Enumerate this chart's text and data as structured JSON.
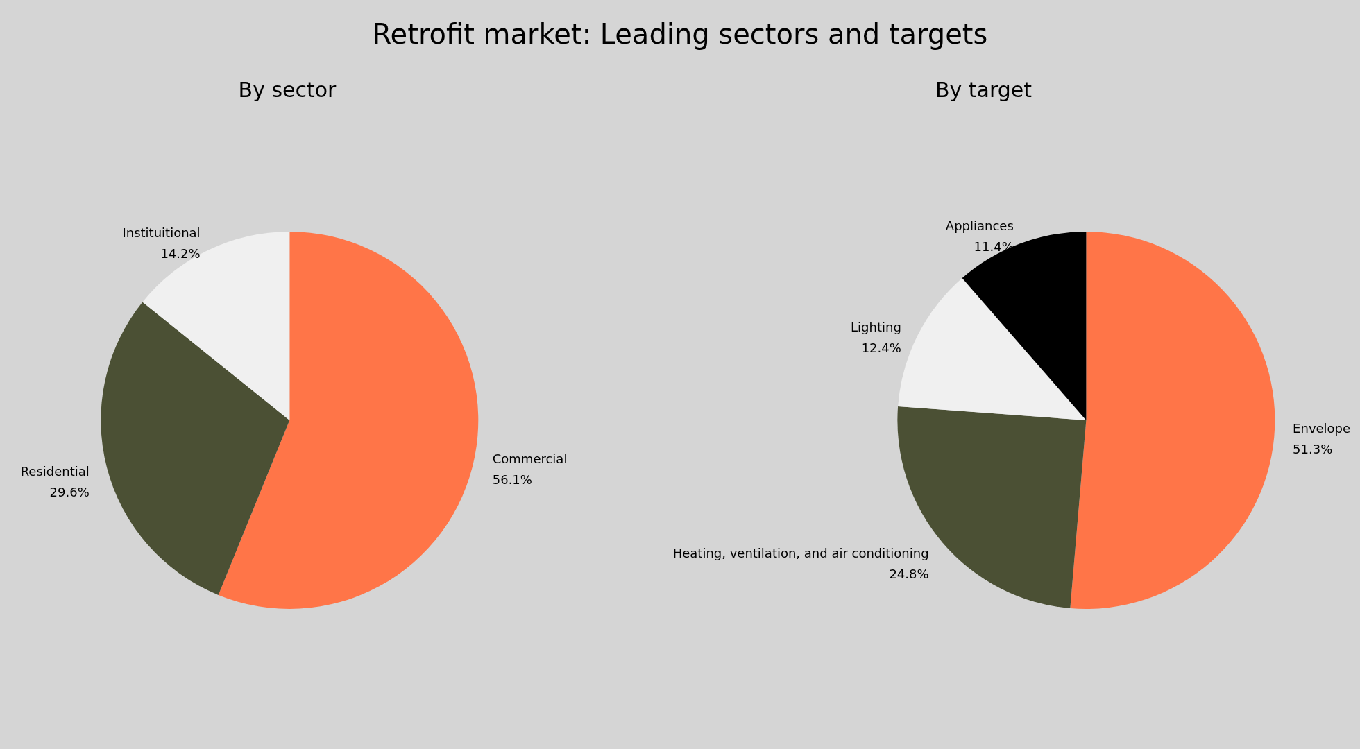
{
  "chart_data": [
    {
      "type": "pie",
      "title": "Retrofit market: Leading sectors and targets",
      "subtitle": "By sector",
      "categories": [
        "Commercial",
        "Residential",
        "Instituitional"
      ],
      "values": [
        56.1,
        29.6,
        14.2
      ],
      "value_labels": [
        "56.1%",
        "29.6%",
        "14.2%"
      ],
      "colors": [
        "#ff7548",
        "#4b5034",
        "#f0f0f0"
      ]
    },
    {
      "type": "pie",
      "title": "By target",
      "categories": [
        "Envelope",
        "Heating, ventilation, and air conditioning",
        "Lighting",
        "Appliances"
      ],
      "values": [
        51.3,
        24.8,
        12.4,
        11.4
      ],
      "value_labels": [
        "51.3%",
        "24.8%",
        "12.4%",
        "11.4%"
      ],
      "colors": [
        "#ff7548",
        "#4b5034",
        "#f0f0f0",
        "#000000"
      ]
    }
  ]
}
